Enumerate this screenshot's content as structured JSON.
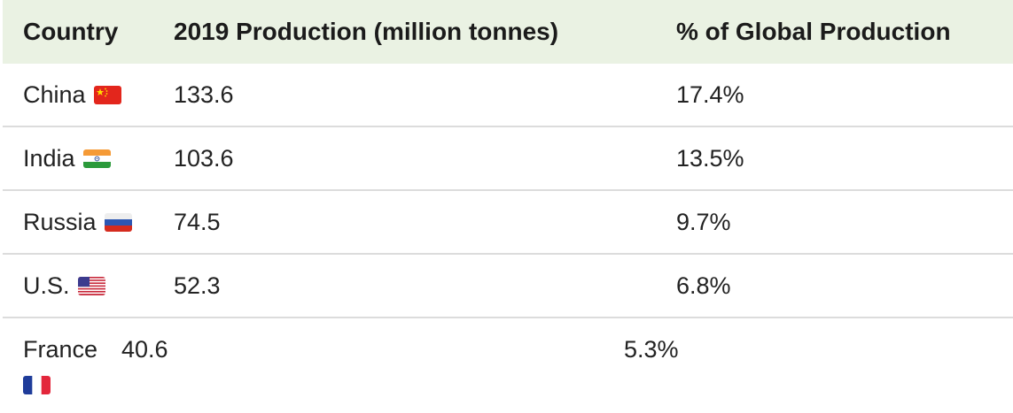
{
  "table": {
    "headers": [
      "Country",
      "2019 Production (million tonnes)",
      "% of Global Production"
    ],
    "rows": [
      {
        "country": "China",
        "flag": "china-flag-icon",
        "production": "133.6",
        "share": "17.4%"
      },
      {
        "country": "India",
        "flag": "india-flag-icon",
        "production": "103.6",
        "share": "13.5%"
      },
      {
        "country": "Russia",
        "flag": "russia-flag-icon",
        "production": "74.5",
        "share": "9.7%"
      },
      {
        "country": "U.S.",
        "flag": "us-flag-icon",
        "production": "52.3",
        "share": "6.8%"
      },
      {
        "country": "France",
        "flag": "france-flag-icon",
        "production": "40.6",
        "share": "5.3%"
      }
    ]
  },
  "colors": {
    "header_background": "#eaf2e3",
    "row_divider": "#dcdcdc"
  }
}
